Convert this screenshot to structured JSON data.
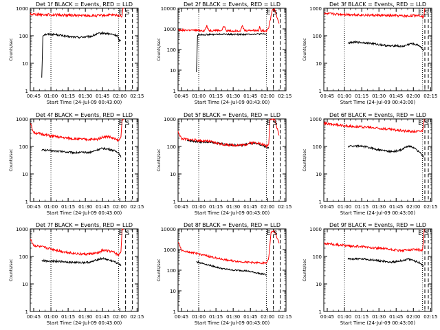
{
  "figure": {
    "x_tick_labels": [
      "00:45",
      "01:00",
      "01:15",
      "01:30",
      "01:45",
      "02:00",
      "02:15"
    ],
    "y_tick_labels": [
      "1",
      "10",
      "100",
      "1000",
      "10000"
    ],
    "event_marker_labels": [
      "E",
      "S"
    ]
  },
  "chart_data": [
    {
      "type": "line",
      "title": "Det 1f BLACK = Events, RED = LLD",
      "xlabel": "Start Time (24-Jul-09 00:43:00)",
      "ylabel": "Counts/sec",
      "xlim": [
        42,
        136
      ],
      "ylim": [
        1,
        1000
      ],
      "y_scale": "log",
      "dotted_lines_min": [
        60,
        119
      ],
      "dashed_lines_min": [
        125,
        131
      ],
      "series": [
        {
          "name": "Events",
          "color": "#000000",
          "x": [
            52,
            53,
            54,
            58,
            65,
            75,
            85,
            95,
            100,
            105,
            110,
            115,
            118,
            119,
            121
          ],
          "y": [
            3,
            100,
            110,
            115,
            110,
            92,
            88,
            95,
            115,
            125,
            118,
            108,
            100,
            70,
            65
          ]
        },
        {
          "name": "LLD",
          "color": "#ff0000",
          "x": [
            42,
            60,
            80,
            100,
            110,
            118,
            120,
            122,
            122.5,
            123.5
          ],
          "y": [
            620,
            580,
            550,
            530,
            560,
            560,
            540,
            510,
            1000,
            1000
          ]
        }
      ]
    },
    {
      "type": "line",
      "title": "Det 2f BLACK = Events, RED = LLD",
      "xlabel": "Start Time (24-Jul-09 00:43:00)",
      "ylabel": "Counts/sec",
      "xlim": [
        42,
        136
      ],
      "ylim": [
        1,
        10000
      ],
      "y_scale": "log",
      "dotted_lines_min": [
        60,
        119
      ],
      "dashed_lines_min": [
        125,
        131
      ],
      "series": [
        {
          "name": "Events",
          "color": "#000000",
          "x": [
            58,
            59,
            60,
            70,
            80,
            90,
            100,
            110,
            119
          ],
          "y": [
            8,
            500,
            520,
            530,
            550,
            540,
            540,
            560,
            560
          ]
        },
        {
          "name": "LLD",
          "color": "#ff0000",
          "x": [
            42,
            55,
            65,
            67,
            69,
            75,
            80,
            82,
            84,
            90,
            96,
            98,
            100,
            105,
            112,
            113,
            114,
            119,
            121,
            124,
            126,
            130
          ],
          "y": [
            880,
            850,
            820,
            1400,
            820,
            850,
            820,
            1400,
            820,
            800,
            820,
            1350,
            820,
            850,
            820,
            1350,
            820,
            800,
            1200,
            8000,
            9000,
            1800
          ]
        }
      ]
    },
    {
      "type": "line",
      "title": "Det 3f BLACK = Events, RED = LLD",
      "xlabel": "Start Time (24-Jul-09 00:43:00)",
      "ylabel": "Counts/sec",
      "xlim": [
        42,
        136
      ],
      "ylim": [
        1,
        1000
      ],
      "y_scale": "log",
      "dotted_lines_min": [
        60,
        128
      ],
      "dashed_lines_min": [
        130,
        133
      ],
      "series": [
        {
          "name": "Events",
          "color": "#000000",
          "x": [
            63,
            70,
            80,
            90,
            100,
            105,
            110,
            118,
            125,
            129
          ],
          "y": [
            55,
            58,
            55,
            48,
            42,
            44,
            40,
            52,
            45,
            30
          ]
        },
        {
          "name": "LLD",
          "color": "#ff0000",
          "x": [
            42,
            60,
            80,
            100,
            115,
            125,
            129,
            130
          ],
          "y": [
            630,
            600,
            560,
            540,
            520,
            560,
            500,
            1000
          ]
        }
      ]
    },
    {
      "type": "line",
      "title": "Det 4f BLACK = Events, RED = LLD",
      "xlabel": "Start Time (24-Jul-09 00:43:00)",
      "ylabel": "Counts/sec",
      "xlim": [
        42,
        136
      ],
      "ylim": [
        1,
        1000
      ],
      "y_scale": "log",
      "dotted_lines_min": [
        60,
        119
      ],
      "dashed_lines_min": [
        125,
        131
      ],
      "series": [
        {
          "name": "Events",
          "color": "#000000",
          "x": [
            52,
            60,
            70,
            80,
            90,
            95,
            100,
            105,
            110,
            115,
            119,
            121
          ],
          "y": [
            75,
            70,
            65,
            60,
            60,
            62,
            75,
            85,
            80,
            70,
            60,
            40
          ]
        },
        {
          "name": "LLD",
          "color": "#ff0000",
          "x": [
            42,
            45,
            60,
            70,
            80,
            90,
            100,
            105,
            110,
            115,
            119,
            121,
            122,
            123
          ],
          "y": [
            700,
            320,
            240,
            210,
            190,
            180,
            180,
            220,
            230,
            190,
            160,
            220,
            1000,
            1000
          ]
        }
      ]
    },
    {
      "type": "line",
      "title": "Det 5f BLACK = Events, RED = LLD",
      "xlabel": "Start Time (24-Jul-09 00:43:00)",
      "ylabel": "Counts/sec",
      "xlim": [
        42,
        136
      ],
      "ylim": [
        1,
        1000
      ],
      "y_scale": "log",
      "dotted_lines_min": [
        60,
        119
      ],
      "dashed_lines_min": [
        125,
        131
      ],
      "series": [
        {
          "name": "Events",
          "color": "#000000",
          "x": [
            50,
            60,
            70,
            80,
            90,
            95,
            100,
            105,
            110,
            115,
            119,
            121
          ],
          "y": [
            160,
            150,
            140,
            125,
            112,
            110,
            115,
            130,
            125,
            110,
            95,
            85
          ]
        },
        {
          "name": "LLD",
          "color": "#ff0000",
          "x": [
            42,
            45,
            60,
            70,
            80,
            90,
            100,
            105,
            110,
            115,
            119,
            121,
            122,
            126,
            130
          ],
          "y": [
            350,
            190,
            165,
            150,
            120,
            110,
            115,
            135,
            140,
            120,
            105,
            120,
            1000,
            1000,
            250
          ]
        }
      ]
    },
    {
      "type": "line",
      "title": "Det 6f BLACK = Events, RED = LLD",
      "xlabel": "Start Time (24-Jul-09 00:43:00)",
      "ylabel": "Counts/sec",
      "xlim": [
        42,
        136
      ],
      "ylim": [
        1,
        1000
      ],
      "y_scale": "log",
      "dotted_lines_min": [
        60,
        128
      ],
      "dashed_lines_min": [
        130,
        133
      ],
      "series": [
        {
          "name": "Events",
          "color": "#000000",
          "x": [
            63,
            70,
            80,
            90,
            100,
            105,
            110,
            115,
            120,
            125,
            129
          ],
          "y": [
            100,
            105,
            95,
            75,
            65,
            68,
            75,
            105,
            90,
            65,
            40
          ]
        },
        {
          "name": "LLD",
          "color": "#ff0000",
          "x": [
            42,
            60,
            80,
            100,
            110,
            115,
            120,
            125,
            128,
            129.5
          ],
          "y": [
            700,
            560,
            500,
            420,
            380,
            360,
            350,
            360,
            380,
            1000
          ]
        }
      ]
    },
    {
      "type": "line",
      "title": "Det 7f BLACK = Events, RED = LLD",
      "xlabel": "Start Time (24-Jul-09 00:43:00)",
      "ylabel": "Counts/sec",
      "xlim": [
        42,
        136
      ],
      "ylim": [
        1,
        1000
      ],
      "y_scale": "log",
      "dotted_lines_min": [
        60,
        119
      ],
      "dashed_lines_min": [
        125,
        131
      ],
      "series": [
        {
          "name": "Events",
          "color": "#000000",
          "x": [
            52,
            60,
            70,
            80,
            90,
            95,
            100,
            105,
            110,
            115,
            119,
            121
          ],
          "y": [
            70,
            68,
            65,
            60,
            60,
            62,
            75,
            85,
            75,
            65,
            55,
            45
          ]
        },
        {
          "name": "LLD",
          "color": "#ff0000",
          "x": [
            42,
            45,
            60,
            70,
            80,
            90,
            100,
            105,
            110,
            115,
            119,
            121,
            122,
            123
          ],
          "y": [
            450,
            250,
            190,
            150,
            130,
            120,
            130,
            165,
            160,
            140,
            110,
            150,
            1000,
            1000
          ]
        }
      ]
    },
    {
      "type": "line",
      "title": "Det 8f BLACK = Events, RED = LLD",
      "xlabel": "Start Time (24-Jul-09 00:43:00)",
      "ylabel": "Counts/sec",
      "xlim": [
        42,
        136
      ],
      "ylim": [
        1,
        10000
      ],
      "y_scale": "log",
      "dotted_lines_min": [
        60,
        119
      ],
      "dashed_lines_min": [
        125,
        131
      ],
      "series": [
        {
          "name": "Events",
          "color": "#000000",
          "x": [
            58,
            60,
            70,
            80,
            90,
            100,
            110,
            119
          ],
          "y": [
            250,
            240,
            170,
            120,
            100,
            95,
            75,
            60
          ]
        },
        {
          "name": "LLD",
          "color": "#ff0000",
          "x": [
            42,
            45,
            60,
            70,
            80,
            90,
            100,
            110,
            119,
            121,
            123,
            126,
            130
          ],
          "y": [
            2500,
            900,
            620,
            450,
            340,
            280,
            250,
            230,
            220,
            400,
            7000,
            8000,
            2000
          ]
        }
      ]
    },
    {
      "type": "line",
      "title": "Det 9f BLACK = Events, RED = LLD",
      "xlabel": "Start Time (24-Jul-09 00:43:00)",
      "ylabel": "Counts/sec",
      "xlim": [
        42,
        136
      ],
      "ylim": [
        1,
        1000
      ],
      "y_scale": "log",
      "dotted_lines_min": [
        60,
        128
      ],
      "dashed_lines_min": [
        130,
        133
      ],
      "series": [
        {
          "name": "Events",
          "color": "#000000",
          "x": [
            63,
            70,
            80,
            90,
            100,
            105,
            110,
            115,
            120,
            125,
            129
          ],
          "y": [
            80,
            82,
            78,
            70,
            62,
            65,
            70,
            80,
            72,
            60,
            45
          ]
        },
        {
          "name": "LLD",
          "color": "#ff0000",
          "x": [
            42,
            60,
            80,
            100,
            110,
            115,
            120,
            125,
            128,
            129.5
          ],
          "y": [
            300,
            250,
            220,
            180,
            160,
            170,
            185,
            175,
            170,
            1000
          ]
        }
      ]
    }
  ]
}
